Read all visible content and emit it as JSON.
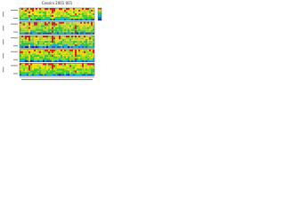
{
  "header": {
    "title": "Cassini 2001 001"
  }
}
